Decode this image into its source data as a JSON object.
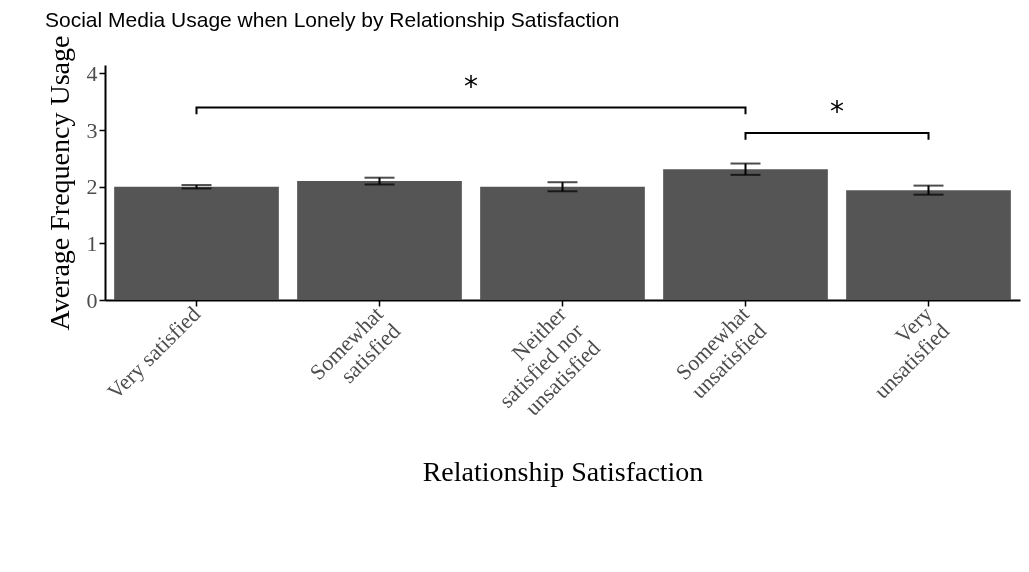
{
  "chart_data": {
    "type": "bar",
    "title": "Social Media Usage when Lonely by Relationship Satisfaction",
    "xlabel": "Relationship Satisfaction",
    "ylabel": "Average Frequency Usage",
    "categories": [
      "Very satisfied",
      "Somewhat\nsatisfied",
      "Neither\nsatisfied nor\nunsatisfied",
      "Somewhat\nunsatisfied",
      "Very\nunsatisfied"
    ],
    "values": [
      2.0,
      2.1,
      2.0,
      2.31,
      1.94
    ],
    "errors": [
      0.03,
      0.06,
      0.08,
      0.1,
      0.08
    ],
    "color": "#555555",
    "ylim": [
      0,
      4.15
    ],
    "yticks": [
      0,
      1,
      2,
      3,
      4
    ],
    "grid": false,
    "annotations": [
      "*",
      "*"
    ]
  }
}
